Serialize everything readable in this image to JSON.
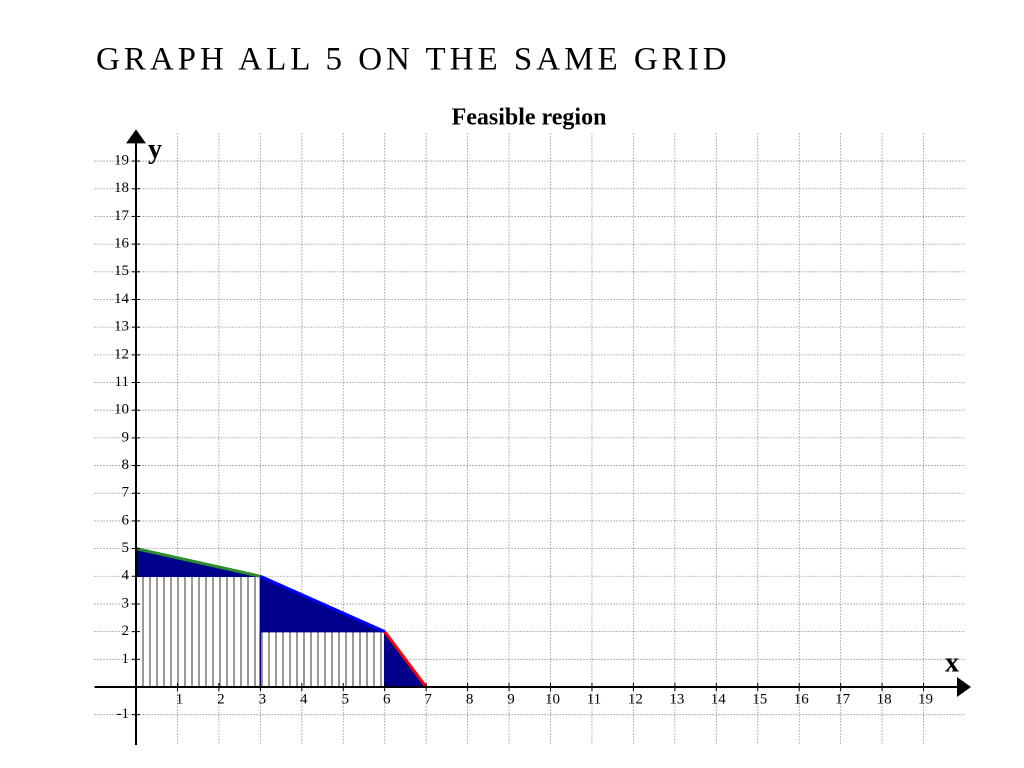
{
  "heading": "GRAPH ALL 5 ON THE SAME GRID",
  "chart_data": {
    "type": "feasible-region",
    "title": "Feasible region",
    "xlabel": "x",
    "ylabel": "y",
    "xlim": [
      -1,
      20
    ],
    "ylim": [
      -2.1,
      20
    ],
    "xticks": [
      1,
      2,
      3,
      4,
      5,
      6,
      7,
      8,
      9,
      10,
      11,
      12,
      13,
      14,
      15,
      16,
      17,
      18,
      19
    ],
    "yticks": [
      -1,
      1,
      2,
      3,
      4,
      5,
      6,
      7,
      8,
      9,
      10,
      11,
      12,
      13,
      14,
      15,
      16,
      17,
      18,
      19
    ],
    "grid": true,
    "region": {
      "color": "#00008b",
      "x": [
        0,
        0,
        3,
        6,
        7
      ],
      "y": [
        0,
        5,
        4,
        2,
        0
      ]
    },
    "hatched": [
      {
        "x": [
          0,
          3
        ],
        "y": [
          0,
          4
        ]
      },
      {
        "x": [
          3,
          6
        ],
        "y": [
          0,
          2
        ]
      }
    ],
    "boundaries": [
      {
        "color": "#2e8b2e",
        "x": [
          0,
          3
        ],
        "y": [
          5,
          4
        ]
      },
      {
        "color": "#0000ff",
        "x": [
          3,
          6
        ],
        "y": [
          4,
          2
        ]
      },
      {
        "color": "#ff0000",
        "x": [
          6,
          7
        ],
        "y": [
          2,
          0
        ]
      }
    ]
  }
}
